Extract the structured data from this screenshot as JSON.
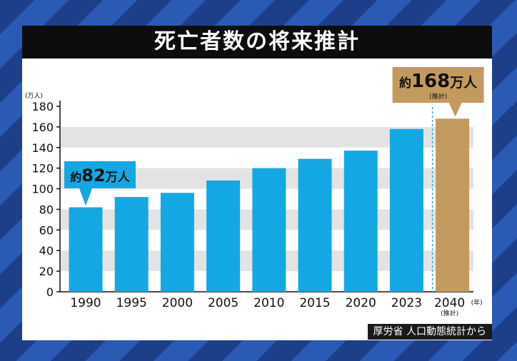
{
  "chart_data": {
    "type": "bar",
    "title": "死亡者数の将来推計",
    "ylabel_unit": "(万人)",
    "xlabel_unit": "(年)",
    "ylim": [
      0,
      180
    ],
    "yticks": [
      0,
      20,
      40,
      60,
      80,
      100,
      120,
      140,
      160,
      180
    ],
    "categories": [
      "1990",
      "1995",
      "2000",
      "2005",
      "2010",
      "2015",
      "2020",
      "2023",
      "2040"
    ],
    "values": [
      82,
      92,
      96,
      108,
      120,
      129,
      137,
      158,
      168
    ],
    "estimate_note": "(推計)",
    "colors": {
      "actual": "#13a8e4",
      "estimate": "#c39a5e",
      "grid_band": "#e3e3e3"
    },
    "annotations": [
      {
        "category": "1990",
        "prefix": "約",
        "number": "82",
        "unit": "万人",
        "sub": ""
      },
      {
        "category": "2040",
        "prefix": "約",
        "number": "168",
        "unit": "万人",
        "sub": "(推計)"
      }
    ]
  },
  "source": "厚労省 人口動態統計から"
}
